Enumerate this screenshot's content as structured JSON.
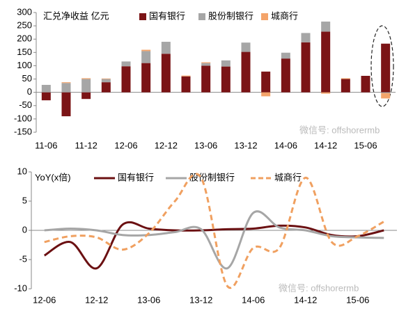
{
  "chart_data": [
    {
      "type": "bar",
      "stacked": true,
      "title": "汇兑净收益 亿元",
      "watermark": "微信号: offshorermb",
      "categories": [
        "11-06",
        null,
        "11-12",
        null,
        "12-06",
        null,
        "12-12",
        null,
        "13-06",
        null,
        "13-12",
        null,
        "14-06",
        null,
        "14-12",
        null,
        "15-06",
        null
      ],
      "series": [
        {
          "name": "国有银行",
          "color": "#7b1416",
          "values": [
            -30,
            -90,
            -25,
            38,
            98,
            110,
            145,
            60,
            100,
            97,
            152,
            78,
            127,
            188,
            228,
            50,
            62,
            183
          ]
        },
        {
          "name": "股份制银行",
          "color": "#a6a6a6",
          "values": [
            28,
            35,
            50,
            12,
            18,
            45,
            45,
            0,
            10,
            23,
            35,
            0,
            22,
            35,
            38,
            0,
            0,
            -3
          ]
        },
        {
          "name": "城商行",
          "color": "#f4a46a",
          "values": [
            0,
            3,
            3,
            2,
            0,
            5,
            0,
            3,
            3,
            0,
            0,
            -15,
            0,
            0,
            -5,
            3,
            0,
            -20
          ]
        }
      ],
      "ylim": [
        -150,
        300
      ],
      "yticks": [
        -150,
        -100,
        -50,
        0,
        50,
        100,
        150,
        200,
        250,
        300
      ]
    },
    {
      "type": "line",
      "title": "YoY(x倍)",
      "watermark": "微信号: offshorermb",
      "categories": [
        "12-06",
        null,
        "12-12",
        null,
        "13-06",
        null,
        "13-12",
        null,
        "14-06",
        null,
        "14-12",
        null,
        "15-06",
        null
      ],
      "series": [
        {
          "name": "国有银行",
          "color": "#6b1012",
          "dash": false,
          "values": [
            -4.3,
            -2,
            -6.5,
            1,
            0.3,
            0,
            0,
            0.2,
            0.3,
            0.8,
            0.5,
            -0.8,
            -1,
            0
          ]
        },
        {
          "name": "股份制银行",
          "color": "#a6a6a6",
          "dash": false,
          "values": [
            0,
            0.3,
            0,
            -0.8,
            -0.8,
            -0.3,
            0.2,
            -6.5,
            3,
            0.5,
            0,
            -1,
            -1.2,
            -1.3
          ]
        },
        {
          "name": "城商行",
          "color": "#f0a060",
          "dash": true,
          "values": [
            -2,
            -1,
            -1.2,
            -3.3,
            -0.5,
            5,
            9,
            -9.5,
            -3,
            -3,
            9,
            -2,
            -1,
            1.5
          ]
        }
      ],
      "ylim": [
        -10,
        10
      ],
      "yticks": [
        -10,
        -5,
        0,
        5,
        10
      ]
    }
  ]
}
